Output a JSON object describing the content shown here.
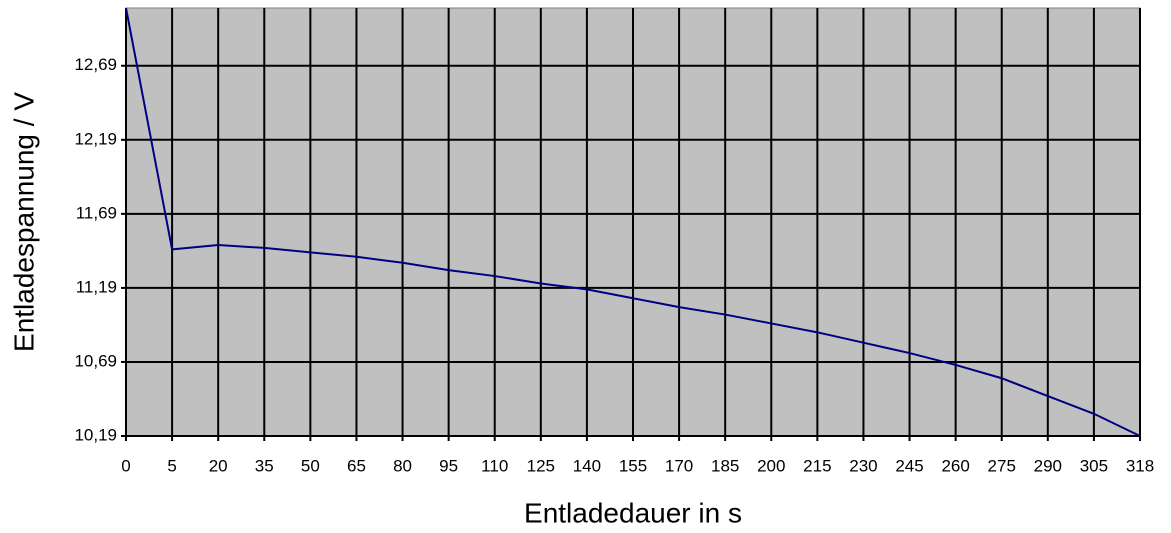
{
  "chart_data": {
    "type": "line",
    "x_label": "Entladedauer in s",
    "y_label": "Entladespannung  / V",
    "categories": [
      "0",
      "5",
      "20",
      "35",
      "50",
      "65",
      "80",
      "95",
      "110",
      "125",
      "140",
      "155",
      "170",
      "185",
      "200",
      "215",
      "230",
      "245",
      "260",
      "275",
      "290",
      "305",
      "318"
    ],
    "values": [
      13.08,
      11.45,
      11.48,
      11.46,
      11.43,
      11.4,
      11.36,
      11.31,
      11.27,
      11.22,
      11.18,
      11.12,
      11.06,
      11.01,
      10.95,
      10.89,
      10.82,
      10.75,
      10.67,
      10.58,
      10.46,
      10.34,
      10.19
    ],
    "color": "#000080",
    "plot_background": "#c0c0c0",
    "grid": true,
    "ylim": [
      10.19,
      13.08
    ],
    "yticks": [
      {
        "value": 10.19,
        "label": "10,19"
      },
      {
        "value": 10.69,
        "label": "10,69"
      },
      {
        "value": 11.19,
        "label": "11,19"
      },
      {
        "value": 11.69,
        "label": "11,69"
      },
      {
        "value": 12.19,
        "label": "12,19"
      },
      {
        "value": 12.69,
        "label": "12,69"
      }
    ]
  }
}
